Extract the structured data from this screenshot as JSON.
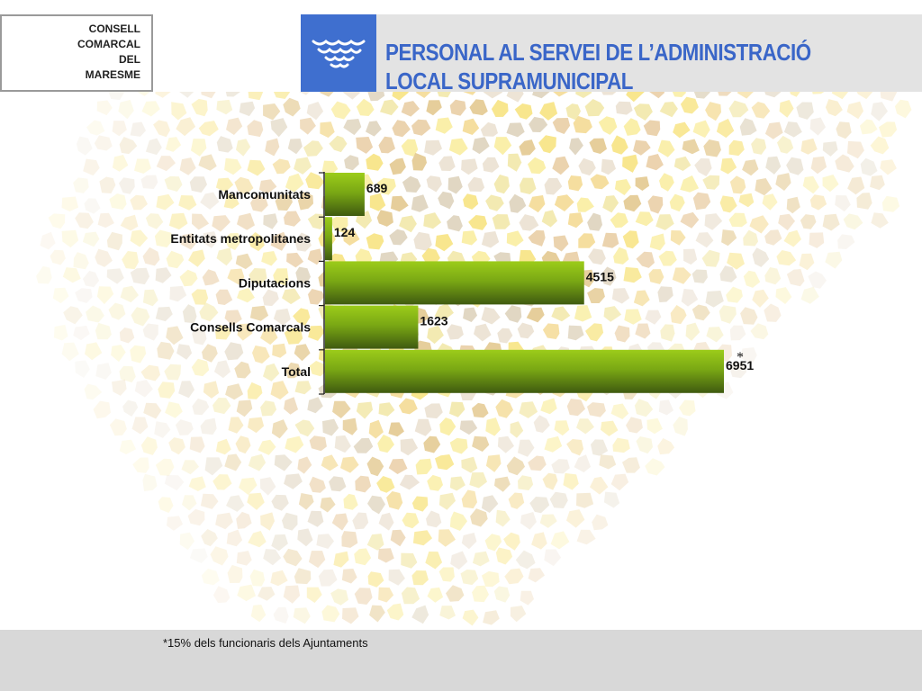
{
  "header": {
    "logo_lines": [
      "CONSELL",
      "COMARCAL",
      "DEL",
      "MARESME"
    ],
    "emblem_icon": "waves-emblem-icon",
    "title_lines": [
      "PERSONAL AL SERVEI DE L’ADMINISTRACIÓ",
      "LOCAL SUPRAMUNICIPAL"
    ]
  },
  "colors": {
    "header_blue": "#3f6fcf",
    "title_blue": "#3a66c8",
    "bar_top": "#9ccc1a",
    "bar_bottom": "#3f5a10"
  },
  "chart_data": {
    "type": "bar",
    "orientation": "horizontal",
    "categories": [
      "Mancomunitats",
      "Entitats metropolitanes",
      "Diputacions",
      "Consells Comarcals",
      "Total"
    ],
    "values": [
      689,
      124,
      4515,
      1623,
      6951
    ],
    "data_labels": [
      "689",
      "124",
      "4515",
      "1623",
      "6951"
    ],
    "annotation": "*",
    "annotated_category": "Total",
    "title": "",
    "xlabel": "",
    "ylabel": "",
    "xlim": [
      0,
      7000
    ],
    "grid": false,
    "legend": "none"
  },
  "footer": {
    "footnote": "*15% dels funcionaris dels Ajuntaments"
  }
}
